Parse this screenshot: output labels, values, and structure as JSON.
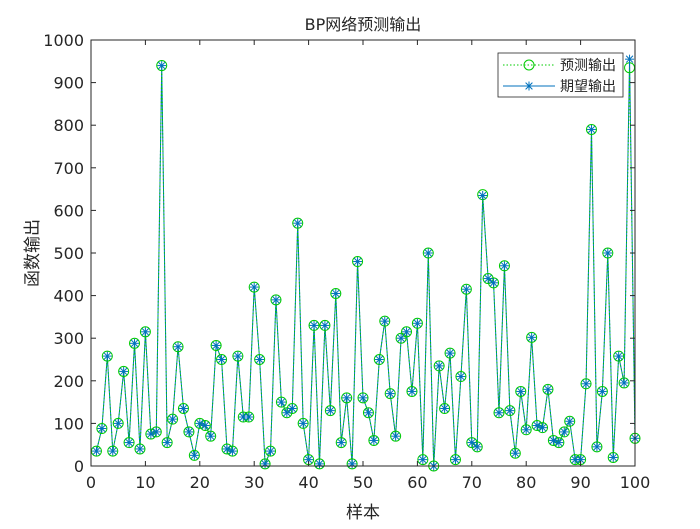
{
  "chart_data": {
    "type": "line",
    "title": "BP网络预测输出",
    "xlabel": "样本",
    "ylabel": "函数输出",
    "xlim": [
      0,
      100
    ],
    "ylim": [
      0,
      1000
    ],
    "xticks": [
      "0",
      "10",
      "20",
      "30",
      "40",
      "50",
      "60",
      "70",
      "80",
      "90",
      "100"
    ],
    "yticks": [
      "0",
      "100",
      "200",
      "300",
      "400",
      "500",
      "600",
      "700",
      "800",
      "900",
      "1000"
    ],
    "grid": false,
    "legend_position": "top-right",
    "x": [
      1,
      2,
      3,
      4,
      5,
      6,
      7,
      8,
      9,
      10,
      11,
      12,
      13,
      14,
      15,
      16,
      17,
      18,
      19,
      20,
      21,
      22,
      23,
      24,
      25,
      26,
      27,
      28,
      29,
      30,
      31,
      32,
      33,
      34,
      35,
      36,
      37,
      38,
      39,
      40,
      41,
      42,
      43,
      44,
      45,
      46,
      47,
      48,
      49,
      50,
      51,
      52,
      53,
      54,
      55,
      56,
      57,
      58,
      59,
      60,
      61,
      62,
      63,
      64,
      65,
      66,
      67,
      68,
      69,
      70,
      71,
      72,
      73,
      74,
      75,
      76,
      77,
      78,
      79,
      80,
      81,
      82,
      83,
      84,
      85,
      86,
      87,
      88,
      89,
      90,
      91,
      92,
      93,
      94,
      95,
      96,
      97,
      98,
      99,
      100
    ],
    "series": [
      {
        "name": "预测输出",
        "color": "#00cc00",
        "style": "dotted-circle",
        "values": [
          35,
          88,
          258,
          35,
          100,
          222,
          55,
          288,
          40,
          315,
          75,
          80,
          940,
          55,
          110,
          280,
          135,
          80,
          25,
          100,
          95,
          70,
          283,
          250,
          40,
          35,
          258,
          115,
          115,
          420,
          250,
          5,
          35,
          390,
          150,
          125,
          135,
          570,
          100,
          15,
          330,
          5,
          330,
          130,
          405,
          55,
          160,
          5,
          480,
          160,
          125,
          60,
          250,
          340,
          170,
          70,
          300,
          315,
          175,
          335,
          15,
          500,
          0,
          235,
          135,
          265,
          15,
          210,
          415,
          55,
          45,
          637,
          440,
          430,
          125,
          470,
          130,
          30,
          175,
          85,
          302,
          95,
          90,
          180,
          60,
          55,
          80,
          105,
          15,
          15,
          193,
          790,
          45,
          175,
          500,
          20,
          258,
          195,
          935,
          65
        ]
      },
      {
        "name": "期望输出",
        "color": "#0072bd",
        "style": "solid-star",
        "values": [
          35,
          88,
          258,
          35,
          100,
          222,
          55,
          288,
          40,
          315,
          75,
          80,
          940,
          55,
          110,
          280,
          135,
          80,
          25,
          100,
          95,
          70,
          283,
          250,
          40,
          35,
          258,
          115,
          115,
          420,
          250,
          5,
          35,
          390,
          150,
          125,
          135,
          570,
          100,
          15,
          330,
          5,
          330,
          130,
          405,
          55,
          160,
          5,
          480,
          160,
          125,
          60,
          250,
          340,
          170,
          70,
          300,
          315,
          175,
          335,
          15,
          500,
          0,
          235,
          135,
          265,
          15,
          210,
          415,
          55,
          45,
          635,
          440,
          430,
          125,
          470,
          130,
          30,
          175,
          85,
          302,
          95,
          90,
          180,
          60,
          55,
          80,
          105,
          15,
          15,
          193,
          790,
          45,
          175,
          500,
          20,
          258,
          195,
          955,
          65
        ]
      }
    ]
  }
}
